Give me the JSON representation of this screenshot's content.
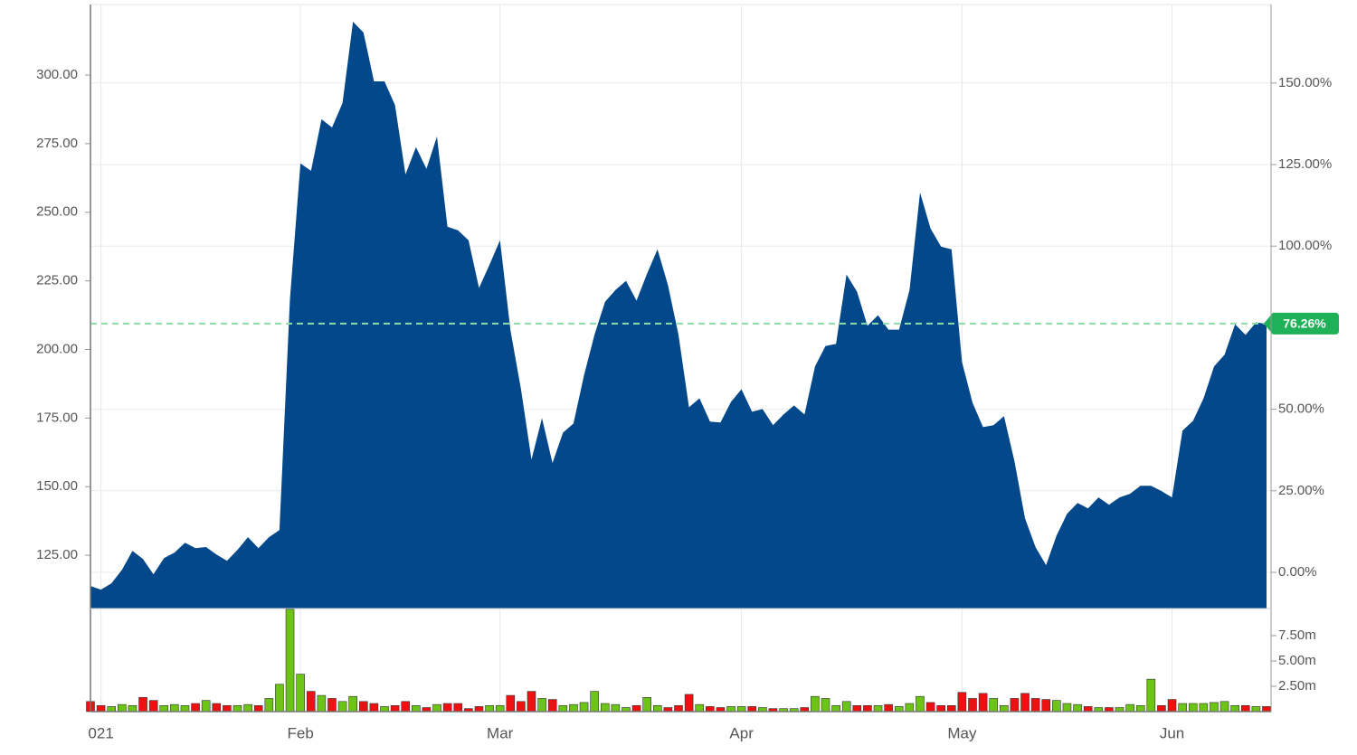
{
  "chart_data": {
    "type": "area",
    "color": "#03488a",
    "categories": [
      null,
      "021",
      null,
      null,
      null,
      null,
      null,
      null,
      null,
      null,
      null,
      null,
      null,
      null,
      null,
      null,
      null,
      null,
      null,
      null,
      "Feb",
      null,
      null,
      null,
      null,
      null,
      null,
      null,
      null,
      null,
      null,
      null,
      null,
      null,
      null,
      null,
      null,
      null,
      null,
      "Mar",
      null,
      null,
      null,
      null,
      null,
      null,
      null,
      null,
      null,
      null,
      null,
      null,
      null,
      null,
      null,
      null,
      null,
      null,
      null,
      null,
      null,
      null,
      "Apr",
      null,
      null,
      null,
      null,
      null,
      null,
      null,
      null,
      null,
      null,
      null,
      null,
      null,
      null,
      null,
      null,
      null,
      null,
      null,
      null,
      "May",
      null,
      null,
      null,
      null,
      null,
      null,
      null,
      null,
      null,
      null,
      null,
      null,
      null,
      null,
      null,
      null,
      null,
      null,
      null,
      "Jun",
      null,
      null,
      null,
      null,
      null,
      null,
      null,
      null,
      null
    ],
    "values": [
      113.8,
      112.5,
      114.8,
      119.7,
      126.6,
      123.7,
      118.1,
      124,
      126,
      129.6,
      127.6,
      128,
      125.3,
      123,
      127,
      131.6,
      127.6,
      131.6,
      134.2,
      218.4,
      267.8,
      265.1,
      283.9,
      280.9,
      289.8,
      319.4,
      315.5,
      297.7,
      297.7,
      289.1,
      263.8,
      273.7,
      265.8,
      277.6,
      244.7,
      243.4,
      239.8,
      222.4,
      230.9,
      239.8,
      206.9,
      185.5,
      159.9,
      175,
      158.6,
      169.7,
      173,
      190.5,
      205.3,
      217.4,
      221.7,
      225,
      217.8,
      227.6,
      236.5,
      223.4,
      205.3,
      178.9,
      182.2,
      173.7,
      173.4,
      180.9,
      185.5,
      177.3,
      178.3,
      172.4,
      176.3,
      179.6,
      176.3,
      193.8,
      201.3,
      202,
      227.3,
      221.1,
      208.6,
      212.5,
      207.2,
      207.2,
      221.7,
      257.2,
      244.1,
      237.5,
      236.5,
      195.4,
      180.6,
      171.7,
      172.4,
      175.7,
      159.2,
      138.5,
      128,
      121.4,
      132.2,
      140.1,
      144.1,
      142.1,
      146.1,
      143.4,
      146.1,
      147.4,
      150.3,
      150.3,
      148.4,
      146.1,
      170.4,
      174,
      182.2,
      193.8,
      198.1,
      209.2,
      205.3,
      209.9,
      209.3
    ],
    "ylim": [
      105.6,
      325.7
    ],
    "yticks": [
      {
        "value": 125,
        "label": "125.00"
      },
      {
        "value": 150,
        "label": "150.00"
      },
      {
        "value": 175,
        "label": "175.00"
      },
      {
        "value": 200,
        "label": "200.00"
      },
      {
        "value": 225,
        "label": "225.00"
      },
      {
        "value": 250,
        "label": "250.00"
      },
      {
        "value": 275,
        "label": "275.00"
      },
      {
        "value": 300,
        "label": "300.00"
      }
    ],
    "y2lim": [
      -11.09,
      174.06
    ],
    "y2ticks": [
      {
        "value": 0,
        "label": "0.00%"
      },
      {
        "value": 25,
        "label": "25.00%"
      },
      {
        "value": 50,
        "label": "50.00%"
      },
      {
        "value": 100,
        "label": "100.00%"
      },
      {
        "value": 125,
        "label": "125.00%"
      },
      {
        "value": 150,
        "label": "150.00%"
      }
    ],
    "grid": true,
    "reference": {
      "value": 76.26,
      "label": "76.26%",
      "axis": "y2",
      "color": "#8fdcaa",
      "badge_color": "#1fb157"
    },
    "volume": {
      "type": "bar",
      "up_color": "#6cc417",
      "down_color": "#ee1111",
      "values": [
        1.0,
        0.6,
        0.5,
        0.7,
        0.6,
        1.4,
        1.1,
        0.6,
        0.7,
        0.6,
        0.8,
        1.1,
        0.8,
        0.6,
        0.6,
        0.7,
        0.6,
        1.3,
        2.7,
        10.1,
        3.7,
        2.0,
        1.6,
        1.3,
        1.0,
        1.5,
        1.0,
        0.8,
        0.5,
        0.6,
        1.0,
        0.6,
        0.4,
        0.7,
        0.8,
        0.8,
        0.3,
        0.5,
        0.6,
        0.6,
        1.6,
        1.0,
        2.0,
        1.3,
        1.2,
        0.6,
        0.7,
        0.9,
        2.0,
        0.8,
        0.7,
        0.4,
        0.6,
        1.4,
        0.6,
        0.4,
        0.6,
        1.7,
        0.7,
        0.5,
        0.4,
        0.5,
        0.5,
        0.5,
        0.4,
        0.3,
        0.3,
        0.3,
        0.4,
        1.5,
        1.3,
        0.6,
        1.0,
        0.6,
        0.6,
        0.6,
        0.7,
        0.5,
        0.8,
        1.5,
        0.9,
        0.6,
        0.6,
        1.9,
        1.3,
        1.8,
        1.3,
        0.6,
        1.3,
        1.8,
        1.3,
        1.2,
        1.1,
        0.8,
        0.7,
        0.5,
        0.4,
        0.4,
        0.4,
        0.7,
        0.6,
        3.2,
        0.6,
        1.2,
        0.8,
        0.8,
        0.8,
        0.9,
        1.0,
        0.6,
        0.6,
        0.5,
        0.5
      ],
      "ylim": [
        0,
        10.18
      ],
      "yticks": [
        {
          "value": 2.5,
          "label": "2.50m"
        },
        {
          "value": 5,
          "label": "5.00m"
        },
        {
          "value": 7.5,
          "label": "7.50m"
        }
      ]
    }
  }
}
